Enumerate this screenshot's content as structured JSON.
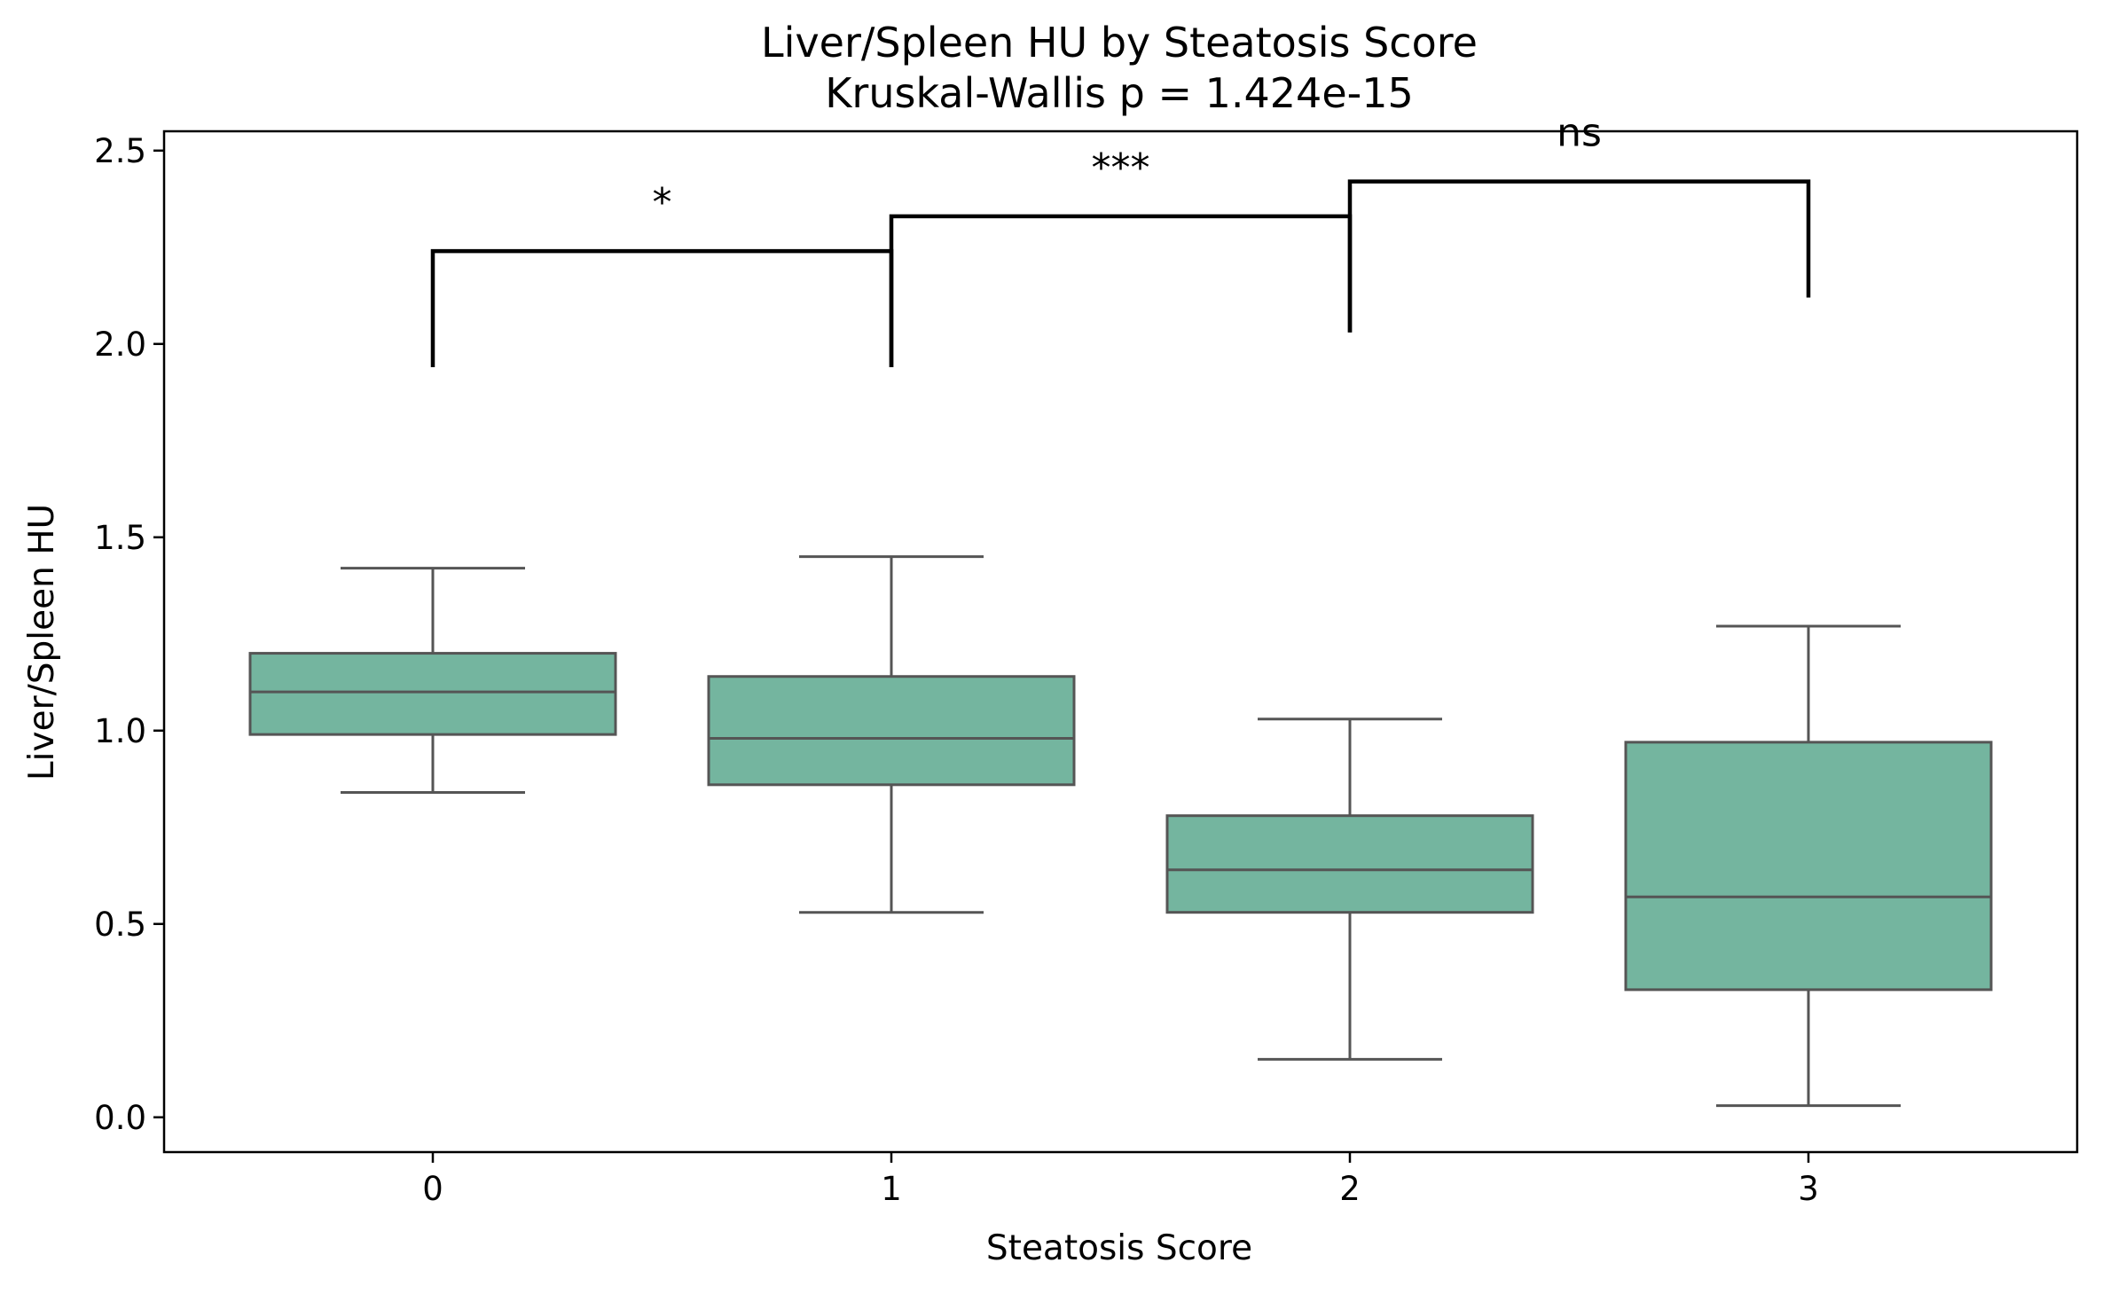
{
  "chart_data": {
    "type": "box",
    "title": "Liver/Spleen HU by Steatosis Score",
    "subtitle": "Kruskal-Wallis p = 1.424e-15",
    "xlabel": "Steatosis Score",
    "ylabel": "Liver/Spleen HU",
    "categories": [
      "0",
      "1",
      "2",
      "3"
    ],
    "ylim": [
      -0.09,
      2.55
    ],
    "yticks": [
      0.0,
      0.5,
      1.0,
      1.5,
      2.0,
      2.5
    ],
    "ytick_labels": [
      "0.0",
      "0.5",
      "1.0",
      "1.5",
      "2.0",
      "2.5"
    ],
    "box_color": "#74b59f",
    "line_color": "#555555",
    "grid": false,
    "boxes": [
      {
        "category": "0",
        "whisker_low": 0.84,
        "q1": 0.99,
        "median": 1.1,
        "q3": 1.2,
        "whisker_high": 1.42
      },
      {
        "category": "1",
        "whisker_low": 0.53,
        "q1": 0.86,
        "median": 0.98,
        "q3": 1.14,
        "whisker_high": 1.45
      },
      {
        "category": "2",
        "whisker_low": 0.15,
        "q1": 0.53,
        "median": 0.64,
        "q3": 0.78,
        "whisker_high": 1.03
      },
      {
        "category": "3",
        "whisker_low": 0.03,
        "q1": 0.33,
        "median": 0.57,
        "q3": 0.97,
        "whisker_high": 1.27
      }
    ],
    "annotations": [
      {
        "from": 0,
        "to": 1,
        "label": "*",
        "y": 2.24,
        "left_tip": 1.94,
        "right_tip": 1.94
      },
      {
        "from": 1,
        "to": 2,
        "label": "***",
        "y": 2.33,
        "left_tip": 1.94,
        "right_tip": 2.03
      },
      {
        "from": 2,
        "to": 3,
        "label": "ns",
        "y": 2.42,
        "left_tip": 2.03,
        "right_tip": 2.12
      }
    ]
  }
}
